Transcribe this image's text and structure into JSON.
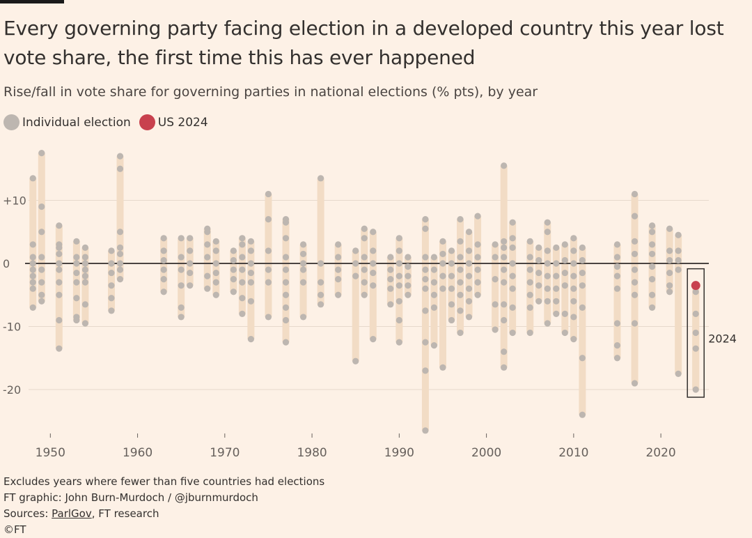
{
  "header": {
    "title": "Every governing party facing election in a developed country this year lost vote share, the first time this has ever happened",
    "subtitle": "Rise/fall in vote share for governing parties in national elections (% pts), by year"
  },
  "legend": [
    {
      "label": "Individual election",
      "color": "#bdb6b0"
    },
    {
      "label": "US 2024",
      "color": "#c8414e"
    }
  ],
  "footer": {
    "note": "Excludes years where fewer than five countries had elections",
    "credit": "FT graphic: John Burn-Murdoch / @jburnmurdoch",
    "sources_prefix": "Sources: ",
    "sources_link": "ParlGov",
    "sources_suffix": ", FT research",
    "copyright": "©FT"
  },
  "colors": {
    "range": "#f2dcc5",
    "dot": "#bdb6b0",
    "us": "#c8414e",
    "zero": "#4a4441",
    "grid": "#e6d9cc",
    "text": "#66605c"
  },
  "chart_data": {
    "type": "scatter",
    "xlim": [
      1947.5,
      2025.5
    ],
    "ylim": [
      -27,
      18
    ],
    "x_ticks": [
      1950,
      1960,
      1970,
      1980,
      1990,
      2000,
      2010,
      2020
    ],
    "y_ticks": [
      {
        "value": 10,
        "label": "+10"
      },
      {
        "value": 0,
        "label": "0"
      },
      {
        "value": -10,
        "label": "-10"
      },
      {
        "value": -20,
        "label": "-20"
      }
    ],
    "highlight": {
      "year": 2024,
      "label": "2024",
      "us_value": -3.5
    },
    "series": [
      {
        "year": 1948,
        "values": [
          13.5,
          3,
          1,
          0,
          -1,
          -2,
          -3,
          -4,
          -7
        ]
      },
      {
        "year": 1949,
        "values": [
          17.5,
          9,
          5,
          1,
          -1,
          -3,
          -5,
          -6
        ]
      },
      {
        "year": 1951,
        "values": [
          6,
          3,
          2.5,
          1.5,
          0,
          -1,
          -3,
          -5,
          -9,
          -13.5
        ]
      },
      {
        "year": 1953,
        "values": [
          3.5,
          1,
          0,
          -1.5,
          -3,
          -5.5,
          -8.5,
          -9
        ]
      },
      {
        "year": 1954,
        "values": [
          2.5,
          1,
          0,
          -1,
          -2,
          -3,
          -6.5,
          -9.5
        ]
      },
      {
        "year": 1957,
        "values": [
          2,
          0,
          -1.5,
          -3.5,
          -5.5,
          -7.5
        ]
      },
      {
        "year": 1958,
        "values": [
          17,
          15,
          5,
          2.5,
          1.5,
          0,
          -1,
          -2.5
        ]
      },
      {
        "year": 1963,
        "values": [
          4,
          2,
          0.5,
          -1,
          -2.5,
          -4.5
        ]
      },
      {
        "year": 1965,
        "values": [
          4,
          1,
          -1,
          -3.5,
          -7,
          -8.5
        ]
      },
      {
        "year": 1966,
        "values": [
          4,
          2,
          0,
          -1.5,
          -3.5
        ]
      },
      {
        "year": 1968,
        "values": [
          5.5,
          5,
          3,
          1,
          -2,
          -4
        ]
      },
      {
        "year": 1969,
        "values": [
          3.5,
          2,
          0,
          -1.5,
          -3,
          -5
        ]
      },
      {
        "year": 1971,
        "values": [
          2,
          0.5,
          -1,
          -2.5,
          -4.5
        ]
      },
      {
        "year": 1972,
        "values": [
          4,
          3,
          1,
          -1,
          -3,
          -5.5,
          -8
        ]
      },
      {
        "year": 1973,
        "values": [
          3.5,
          2,
          0,
          -1.5,
          -3,
          -6,
          -12
        ]
      },
      {
        "year": 1975,
        "values": [
          11,
          7,
          2,
          -1,
          -3,
          -8.5
        ]
      },
      {
        "year": 1977,
        "values": [
          7,
          6.5,
          4,
          1,
          -1,
          -3,
          -5,
          -7,
          -9,
          -12.5
        ]
      },
      {
        "year": 1979,
        "values": [
          3,
          1.5,
          0,
          -1,
          -3,
          -8.5
        ]
      },
      {
        "year": 1981,
        "values": [
          13.5,
          0,
          -3,
          -5,
          -6.5
        ]
      },
      {
        "year": 1983,
        "values": [
          3,
          1,
          -1,
          -2.5,
          -5
        ]
      },
      {
        "year": 1985,
        "values": [
          2,
          0,
          -2,
          -15.5
        ]
      },
      {
        "year": 1986,
        "values": [
          5.5,
          4,
          1,
          -1,
          -3,
          -5
        ]
      },
      {
        "year": 1987,
        "values": [
          5,
          2,
          0,
          -1.5,
          -3.5,
          -12
        ]
      },
      {
        "year": 1989,
        "values": [
          1,
          -1,
          -2.5,
          -4,
          -6.5
        ]
      },
      {
        "year": 1990,
        "values": [
          4,
          2,
          0,
          -2,
          -3.5,
          -6,
          -9,
          -12.5
        ]
      },
      {
        "year": 1991,
        "values": [
          1,
          -0.5,
          -2,
          -3.5,
          -5
        ]
      },
      {
        "year": 1993,
        "values": [
          7,
          5.5,
          1,
          -1,
          -2.5,
          -4,
          -7.5,
          -12.5,
          -17,
          -26.5
        ]
      },
      {
        "year": 1994,
        "values": [
          1,
          -1,
          -3,
          -5,
          -7,
          -13
        ]
      },
      {
        "year": 1995,
        "values": [
          3.5,
          1.5,
          0,
          -2,
          -4,
          -16.5
        ]
      },
      {
        "year": 1996,
        "values": [
          2,
          0,
          -2,
          -4,
          -6.5,
          -9
        ]
      },
      {
        "year": 1997,
        "values": [
          7,
          3.5,
          1,
          -1,
          -3,
          -5,
          -7.5,
          -11
        ]
      },
      {
        "year": 1998,
        "values": [
          5,
          2,
          0,
          -2,
          -4,
          -6,
          -8.5
        ]
      },
      {
        "year": 1999,
        "values": [
          7.5,
          3,
          1,
          -1,
          -3,
          -5
        ]
      },
      {
        "year": 2001,
        "values": [
          3,
          1,
          -2.5,
          -6.5,
          -10.5
        ]
      },
      {
        "year": 2002,
        "values": [
          15.5,
          3.5,
          2.5,
          1,
          -1,
          -3,
          -6.5,
          -9,
          -14,
          -16.5
        ]
      },
      {
        "year": 2003,
        "values": [
          6.5,
          4,
          2.5,
          0,
          -2,
          -4,
          -7,
          -11
        ]
      },
      {
        "year": 2005,
        "values": [
          3.5,
          1,
          -1,
          -3,
          -5,
          -7,
          -11
        ]
      },
      {
        "year": 2006,
        "values": [
          2.5,
          0.5,
          -1.5,
          -3.5,
          -6
        ]
      },
      {
        "year": 2007,
        "values": [
          6.5,
          5,
          2,
          0,
          -2,
          -4,
          -6,
          -9.5
        ]
      },
      {
        "year": 2008,
        "values": [
          2.5,
          0,
          -2,
          -4,
          -6,
          -8
        ]
      },
      {
        "year": 2009,
        "values": [
          3,
          0.5,
          -1.5,
          -3.5,
          -8,
          -11
        ]
      },
      {
        "year": 2010,
        "values": [
          4,
          2,
          0,
          -2,
          -4,
          -6,
          -8.5,
          -12
        ]
      },
      {
        "year": 2011,
        "values": [
          2.5,
          0.5,
          -1.5,
          -3.5,
          -7,
          -15,
          -24
        ]
      },
      {
        "year": 2015,
        "values": [
          3,
          1,
          -0.5,
          -2,
          -4,
          -9.5,
          -13,
          -15
        ]
      },
      {
        "year": 2017,
        "values": [
          11,
          7.5,
          3.5,
          1.5,
          -1,
          -3,
          -5,
          -9.5,
          -19
        ]
      },
      {
        "year": 2019,
        "values": [
          6,
          5,
          3,
          1.5,
          -0.5,
          -2.5,
          -5,
          -7
        ]
      },
      {
        "year": 2021,
        "values": [
          5.5,
          2,
          0.5,
          -1.5,
          -3.5,
          -4.5
        ]
      },
      {
        "year": 2022,
        "values": [
          4.5,
          2,
          0.5,
          -1,
          -17.5
        ]
      },
      {
        "year": 2024,
        "values": [
          -4.5,
          -8,
          -11,
          -13.5,
          -20
        ]
      }
    ]
  }
}
